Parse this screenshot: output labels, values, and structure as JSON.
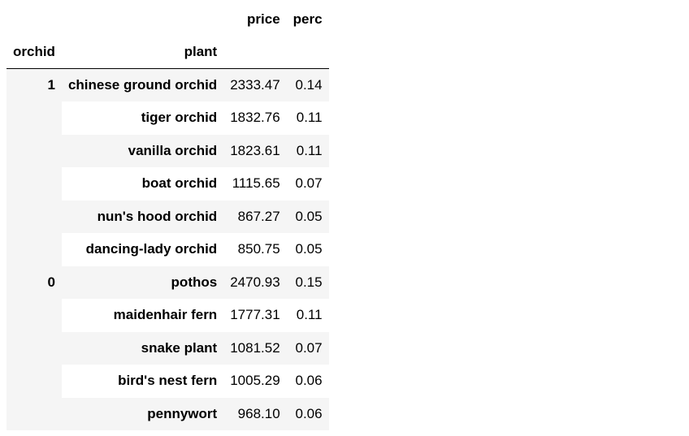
{
  "table": {
    "columns": [
      "price",
      "perc"
    ],
    "index_names": [
      "orchid",
      "plant"
    ],
    "groups": [
      {
        "key": "1",
        "rows": [
          {
            "plant": "chinese ground orchid",
            "price": "2333.47",
            "perc": "0.14"
          },
          {
            "plant": "tiger orchid",
            "price": "1832.76",
            "perc": "0.11"
          },
          {
            "plant": "vanilla orchid",
            "price": "1823.61",
            "perc": "0.11"
          },
          {
            "plant": "boat orchid",
            "price": "1115.65",
            "perc": "0.07"
          },
          {
            "plant": "nun's hood orchid",
            "price": "867.27",
            "perc": "0.05"
          },
          {
            "plant": "dancing-lady orchid",
            "price": "850.75",
            "perc": "0.05"
          }
        ]
      },
      {
        "key": "0",
        "rows": [
          {
            "plant": "pothos",
            "price": "2470.93",
            "perc": "0.15"
          },
          {
            "plant": "maidenhair fern",
            "price": "1777.31",
            "perc": "0.11"
          },
          {
            "plant": "snake plant",
            "price": "1081.52",
            "perc": "0.07"
          },
          {
            "plant": "bird's nest fern",
            "price": "1005.29",
            "perc": "0.06"
          },
          {
            "plant": "pennywort",
            "price": "968.10",
            "perc": "0.06"
          }
        ]
      }
    ]
  }
}
